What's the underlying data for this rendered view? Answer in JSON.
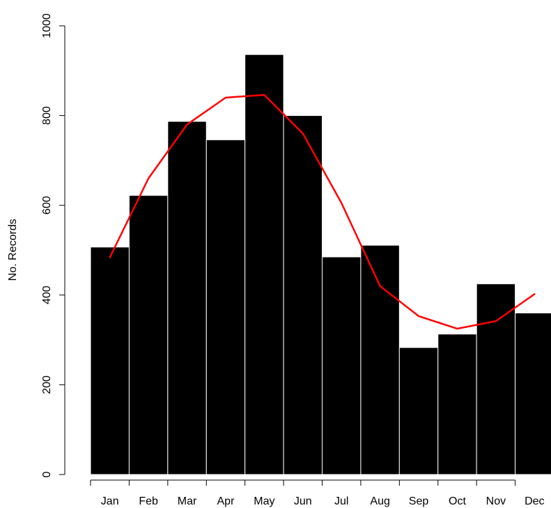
{
  "chart_data": {
    "type": "bar",
    "title": "",
    "xlabel": "",
    "ylabel": "No. Records",
    "ylim": [
      0,
      1000
    ],
    "yticks": [
      0,
      200,
      400,
      600,
      800,
      1000
    ],
    "grid": false,
    "legend": "none",
    "categories": [
      "Jan",
      "Feb",
      "Mar",
      "Apr",
      "May",
      "Jun",
      "Jul",
      "Aug",
      "Sep",
      "Oct",
      "Nov",
      "Dec"
    ],
    "series": [
      {
        "type": "bar",
        "color": "#000000",
        "values": [
          507,
          622,
          787,
          746,
          936,
          800,
          485,
          511,
          283,
          313,
          425,
          360
        ]
      },
      {
        "type": "line",
        "color": "#ff0000",
        "values": [
          484,
          660,
          780,
          840,
          846,
          760,
          605,
          420,
          353,
          325,
          342,
          402
        ]
      }
    ]
  }
}
